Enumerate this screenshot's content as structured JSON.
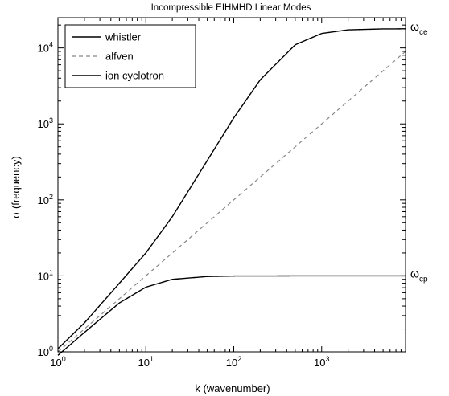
{
  "chart_data": {
    "type": "line",
    "title": "Incompressible EIHMHD Linear Modes",
    "xlabel": "k (wavenumber)",
    "ylabel": "σ (frequency)",
    "xscale": "log",
    "yscale": "log",
    "xlim": [
      1,
      9000
    ],
    "ylim": [
      1,
      25000
    ],
    "grid": false,
    "legend_position": "top-left",
    "x_ticks": [
      {
        "base": "10",
        "exp": "0",
        "value": 1
      },
      {
        "base": "10",
        "exp": "1",
        "value": 10
      },
      {
        "base": "10",
        "exp": "2",
        "value": 100
      },
      {
        "base": "10",
        "exp": "3",
        "value": 1000
      }
    ],
    "y_ticks": [
      {
        "base": "10",
        "exp": "0",
        "value": 1
      },
      {
        "base": "10",
        "exp": "1",
        "value": 10
      },
      {
        "base": "10",
        "exp": "2",
        "value": 100
      },
      {
        "base": "10",
        "exp": "3",
        "value": 1000
      },
      {
        "base": "10",
        "exp": "4",
        "value": 10000
      }
    ],
    "series": [
      {
        "name": "whistler",
        "color": "#000000",
        "dash": "solid",
        "x": [
          1,
          2,
          5,
          10,
          20,
          50,
          100,
          200,
          500,
          1000,
          2000,
          5000,
          9000
        ],
        "y": [
          1.1,
          2.4,
          8.0,
          20,
          60,
          330,
          1200,
          3800,
          11000,
          15500,
          17300,
          17800,
          17850
        ]
      },
      {
        "name": "alfven",
        "color": "#888888",
        "dash": "dashed",
        "x": [
          1,
          10,
          100,
          1000,
          9000
        ],
        "y": [
          1,
          10,
          100,
          1000,
          9000
        ]
      },
      {
        "name": "ion cyclotron",
        "color": "#000000",
        "dash": "solid",
        "x": [
          1,
          2,
          5,
          10,
          20,
          50,
          100,
          1000,
          9000
        ],
        "y": [
          0.9,
          1.8,
          4.4,
          7.1,
          9.0,
          9.8,
          9.95,
          10,
          10
        ]
      }
    ],
    "annotations": [
      {
        "base": "ω",
        "sub": "ce",
        "y": 17850
      },
      {
        "base": "ω",
        "sub": "cp",
        "y": 10
      }
    ]
  }
}
